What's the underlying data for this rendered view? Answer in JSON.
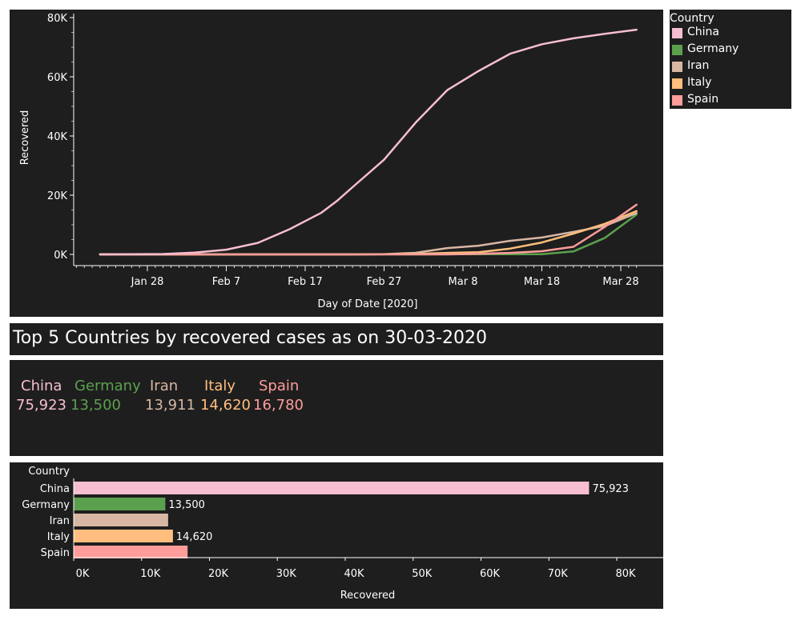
{
  "colors": {
    "China": "#f7bed1",
    "Germany": "#5ba04d",
    "Iran": "#d8b6a4",
    "Italy": "#ffbe7d",
    "Spain": "#ff9d9a",
    "axis": "#ffffff",
    "panel": "#1e1e1e"
  },
  "legend": {
    "title": "Country",
    "items": [
      "China",
      "Germany",
      "Iran",
      "Italy",
      "Spain"
    ]
  },
  "summary": {
    "title": "Top 5 Countries by recovered cases  as on 30-03-2020",
    "kpis": [
      {
        "country": "China",
        "value": "75,923"
      },
      {
        "country": "Germany",
        "value": "13,500"
      },
      {
        "country": "Iran",
        "value": "13,911"
      },
      {
        "country": "Italy",
        "value": "14,620"
      },
      {
        "country": "Spain",
        "value": "16,780"
      }
    ]
  },
  "chart_data": [
    {
      "type": "line",
      "xlabel": "Day of Date [2020]",
      "ylabel": "Recovered",
      "x_ticks": [
        "Jan 28",
        "Feb 7",
        "Feb 17",
        "Feb 27",
        "Mar 8",
        "Mar 18",
        "Mar 28"
      ],
      "y_ticks": [
        "0K",
        "20K",
        "40K",
        "60K",
        "80K"
      ],
      "ylim": [
        0,
        80000
      ],
      "x_dates": [
        "2020-01-22",
        "2020-01-26",
        "2020-01-30",
        "2020-02-03",
        "2020-02-07",
        "2020-02-11",
        "2020-02-15",
        "2020-02-19",
        "2020-02-21",
        "2020-02-23",
        "2020-02-27",
        "2020-03-02",
        "2020-03-06",
        "2020-03-10",
        "2020-03-14",
        "2020-03-18",
        "2020-03-22",
        "2020-03-26",
        "2020-03-30"
      ],
      "series": [
        {
          "name": "China",
          "values": [
            28,
            49,
            133,
            600,
            1600,
            3900,
            8500,
            14000,
            18000,
            22700,
            32000,
            44500,
            55500,
            62000,
            67800,
            71000,
            73000,
            74500,
            75923
          ]
        },
        {
          "name": "Germany",
          "values": [
            0,
            0,
            0,
            0,
            0,
            0,
            0,
            0,
            0,
            0,
            16,
            16,
            46,
            46,
            46,
            46,
            1000,
            5600,
            13500
          ]
        },
        {
          "name": "Iran",
          "values": [
            0,
            0,
            0,
            0,
            0,
            0,
            0,
            0,
            0,
            0,
            73,
            552,
            2134,
            2959,
            4590,
            5710,
            7635,
            9625,
            13911
          ]
        },
        {
          "name": "Italy",
          "values": [
            0,
            0,
            0,
            0,
            0,
            0,
            0,
            0,
            0,
            1,
            45,
            160,
            523,
            724,
            1966,
            4025,
            7024,
            10361,
            14620
          ]
        },
        {
          "name": "Spain",
          "values": [
            0,
            0,
            0,
            0,
            0,
            0,
            0,
            0,
            0,
            0,
            0,
            0,
            0,
            193,
            517,
            1081,
            2575,
            9357,
            16780
          ]
        }
      ]
    },
    {
      "type": "bar",
      "orientation": "horizontal",
      "axis_title": "Country",
      "xlabel": "Recovered",
      "x_ticks": [
        "0K",
        "10K",
        "20K",
        "30K",
        "40K",
        "50K",
        "60K",
        "70K",
        "80K"
      ],
      "xlim": [
        0,
        86000
      ],
      "categories": [
        "China",
        "Germany",
        "Iran",
        "Italy",
        "Spain"
      ],
      "values": [
        75923,
        13500,
        13911,
        14620,
        16780
      ],
      "data_labels": [
        "75,923",
        "13,500",
        "",
        "14,620",
        ""
      ]
    }
  ]
}
